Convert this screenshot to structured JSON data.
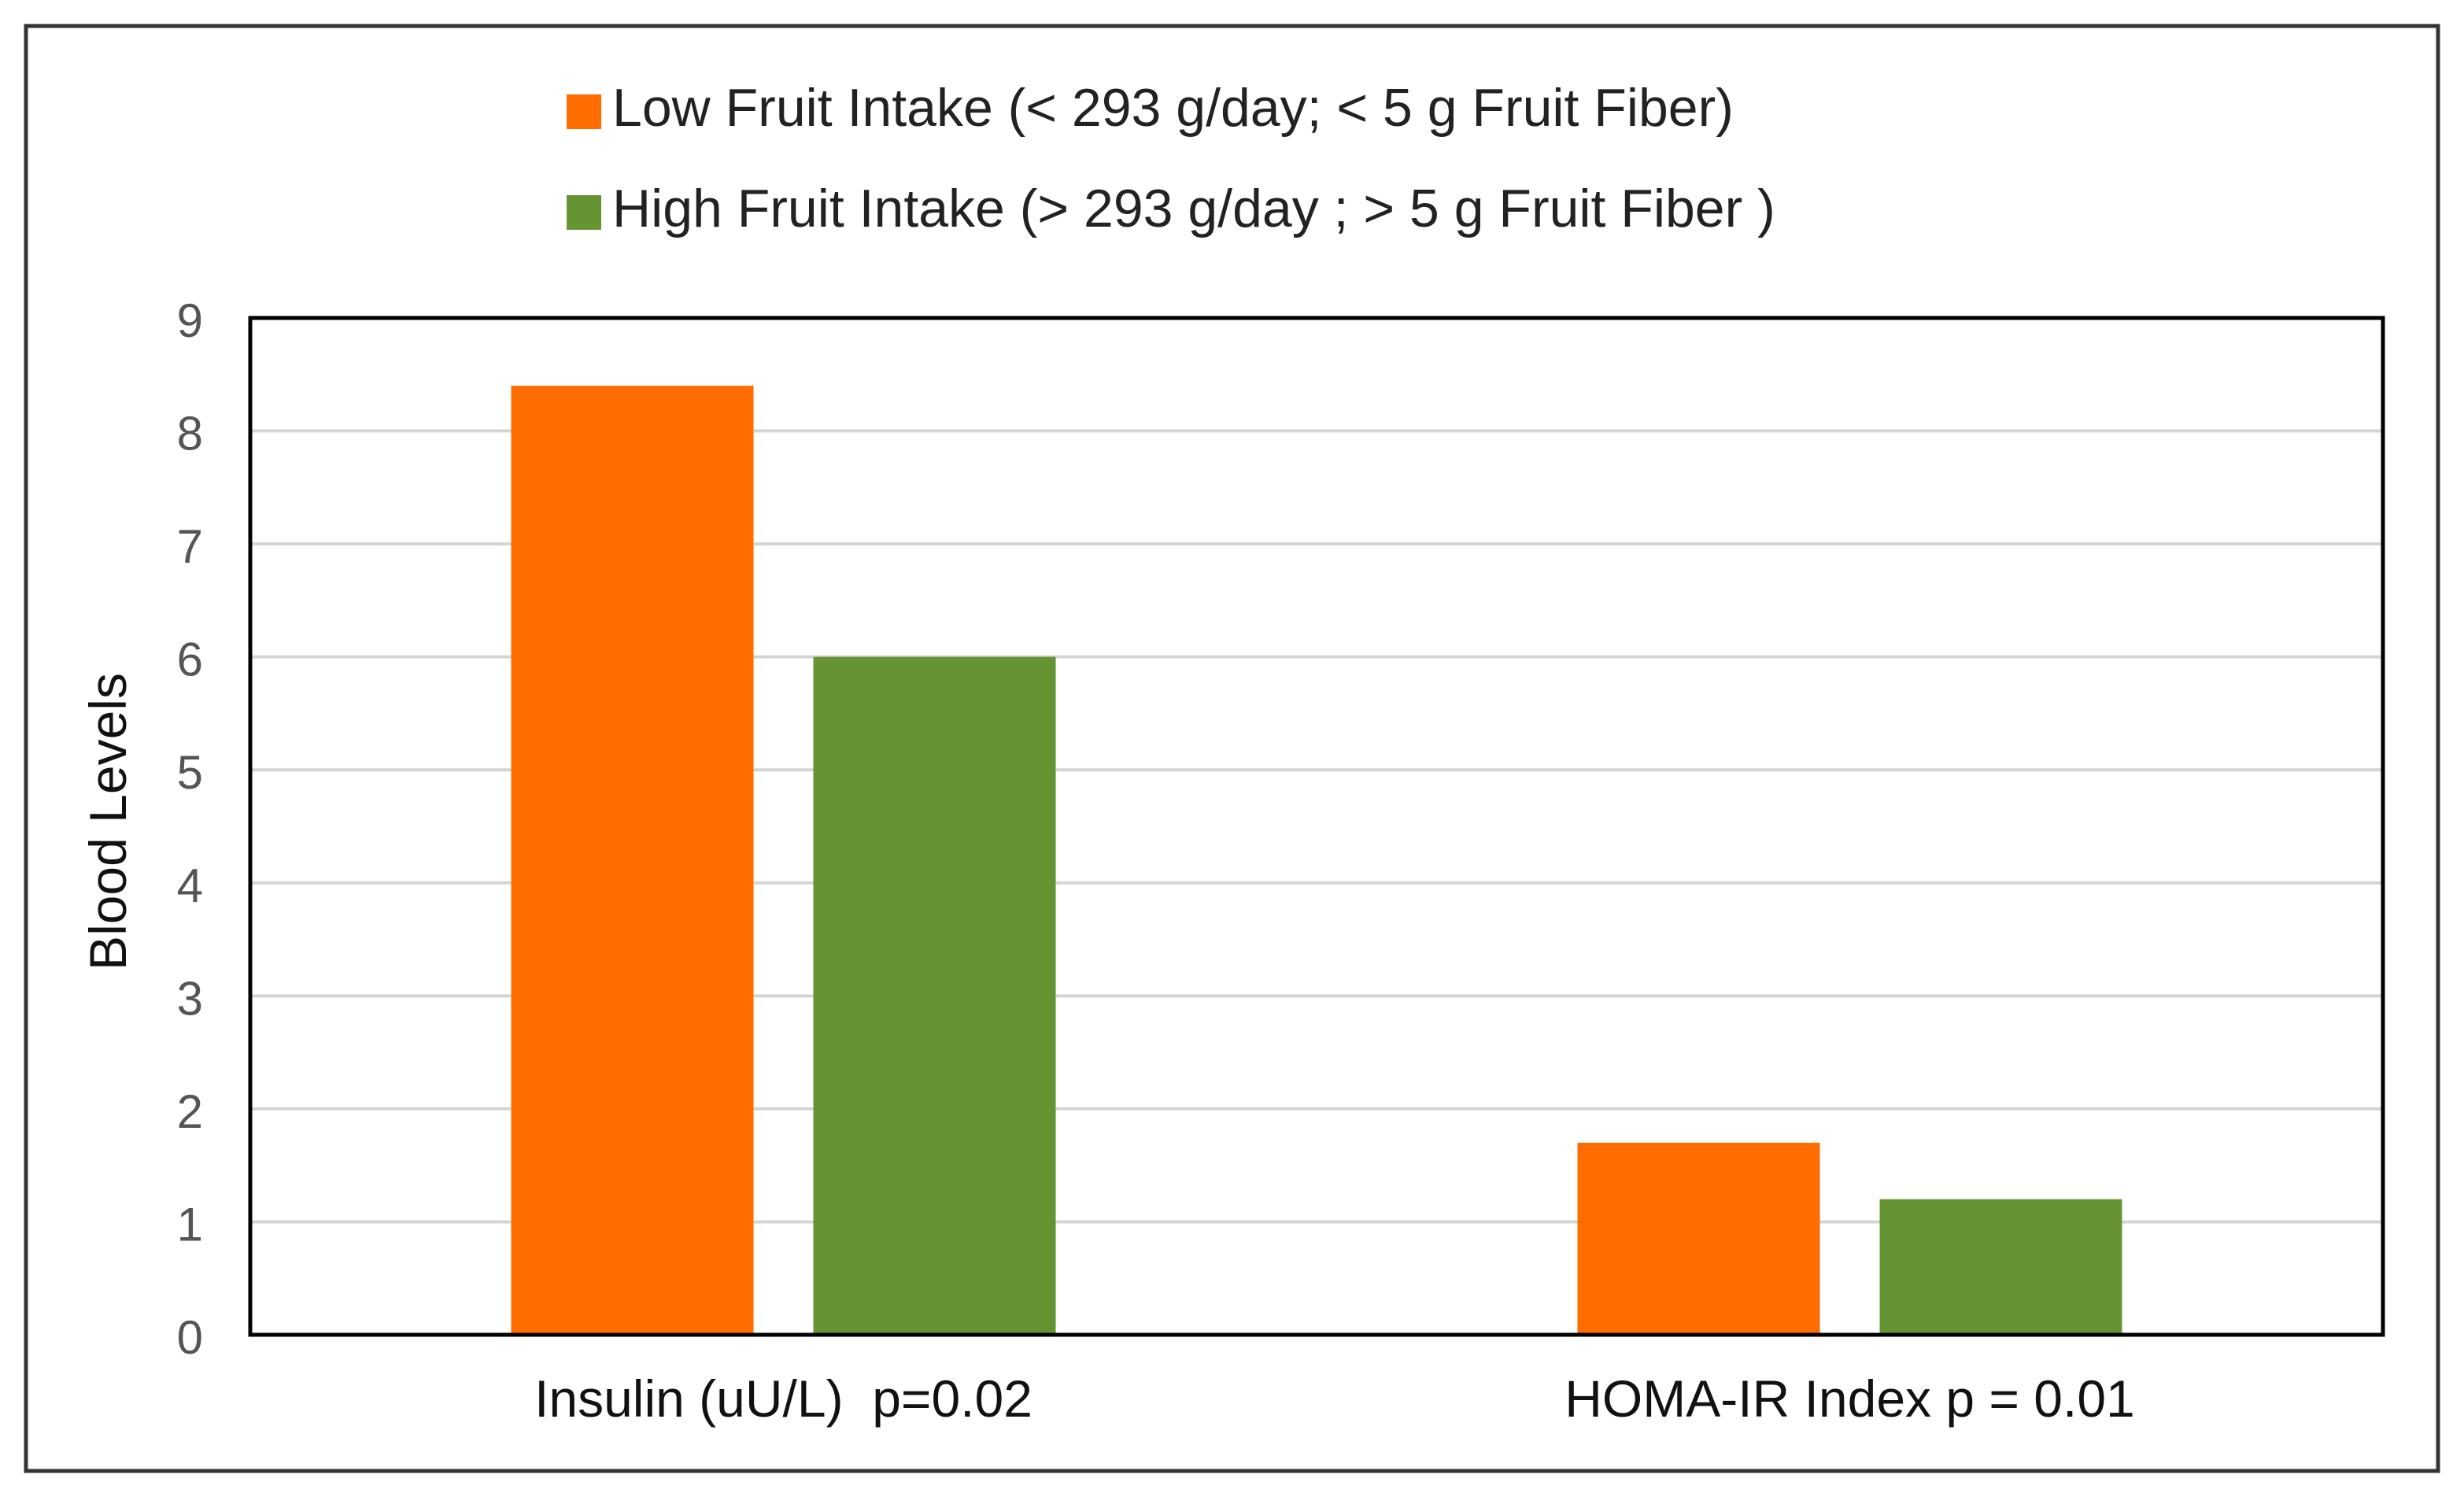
{
  "chart_data": {
    "type": "bar",
    "categories": [
      "Insulin (uU/L)  p=0.02",
      "HOMA-IR Index p = 0.01"
    ],
    "series": [
      {
        "name": "Low Fruit Intake (< 293 g/day; < 5 g Fruit Fiber)",
        "values": [
          8.4,
          1.7
        ],
        "color": "#FF6D00"
      },
      {
        "name": "High Fruit Intake (> 293 g/day ; > 5 g Fruit Fiber )",
        "values": [
          6.0,
          1.2
        ],
        "color": "#679432"
      }
    ],
    "title": "",
    "xlabel": "",
    "ylabel": "Blood Levels",
    "ylim": [
      0,
      9
    ],
    "yticks": [
      "0",
      "1",
      "2",
      "3",
      "4",
      "5",
      "6",
      "7",
      "8",
      "9"
    ],
    "grid": true,
    "legend_position": "top-center"
  }
}
